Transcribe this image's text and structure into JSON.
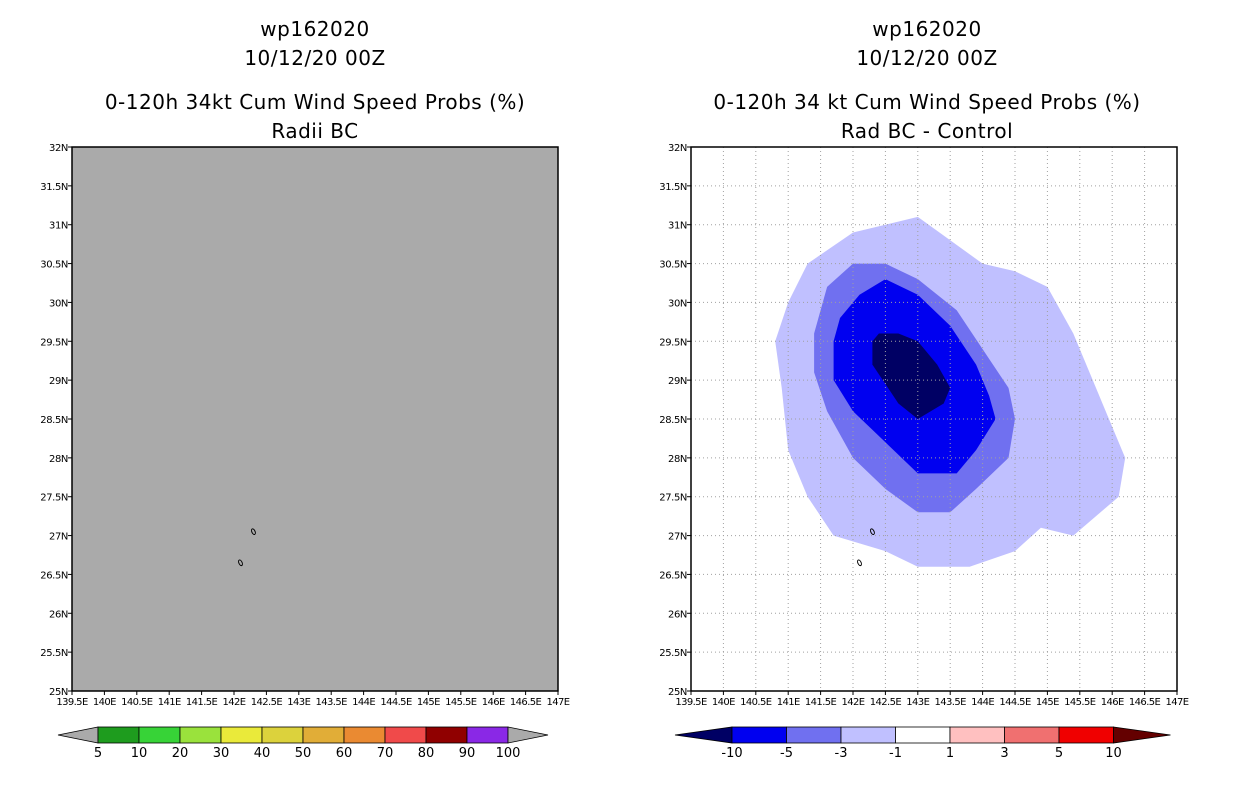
{
  "chart_data": [
    {
      "type": "heatmap",
      "title_line1": "wp162020",
      "title_line2": "10/12/20 00Z",
      "panel_title_line1": "0-120h 34kt Cum Wind Speed Probs (%)",
      "panel_title_line2": "Radii BC",
      "background_color": "#aaaaaa",
      "xlim": [
        139.5,
        147.0
      ],
      "ylim": [
        25.0,
        32.0
      ],
      "x_ticks": [
        "139.5E",
        "140E",
        "140.5E",
        "141E",
        "141.5E",
        "142E",
        "142.5E",
        "143E",
        "143.5E",
        "144E",
        "144.5E",
        "145E",
        "145.5E",
        "146E",
        "146.5E",
        "147E"
      ],
      "y_ticks": [
        "25N",
        "25.5N",
        "26N",
        "26.5N",
        "27N",
        "27.5N",
        "28N",
        "28.5N",
        "29N",
        "29.5N",
        "30N",
        "30.5N",
        "31N",
        "31.5N",
        "32N"
      ],
      "grid": false,
      "islands": [
        [
          142.3,
          27.05
        ],
        [
          142.1,
          26.65
        ]
      ],
      "colorbar": {
        "labels": [
          "5",
          "10",
          "20",
          "30",
          "40",
          "50",
          "60",
          "70",
          "80",
          "90",
          "100"
        ],
        "colors": [
          "#aaaaaa",
          "#1e9c1e",
          "#37d337",
          "#9ae23c",
          "#eaea3a",
          "#dcd23c",
          "#e1ad37",
          "#ea8a32",
          "#f04a4a",
          "#900000",
          "#8a28e6",
          "#aaaaaa"
        ]
      }
    },
    {
      "type": "heatmap",
      "title_line1": "wp162020",
      "title_line2": "10/12/20 00Z",
      "panel_title_line1": "0-120h 34 kt Cum Wind Speed Probs (%)",
      "panel_title_line2": "Rad BC - Control",
      "background_color": "#ffffff",
      "xlim": [
        139.5,
        147.0
      ],
      "ylim": [
        25.0,
        32.0
      ],
      "x_ticks": [
        "139.5E",
        "140E",
        "140.5E",
        "141E",
        "141.5E",
        "142E",
        "142.5E",
        "143E",
        "143.5E",
        "144E",
        "144.5E",
        "145E",
        "145.5E",
        "146E",
        "146.5E",
        "147E"
      ],
      "y_ticks": [
        "25N",
        "25.5N",
        "26N",
        "26.5N",
        "27N",
        "27.5N",
        "28N",
        "28.5N",
        "29N",
        "29.5N",
        "30N",
        "30.5N",
        "31N",
        "31.5N",
        "32N"
      ],
      "grid": true,
      "islands": [
        [
          142.3,
          27.05
        ],
        [
          142.1,
          26.65
        ]
      ],
      "contours": [
        {
          "level": "-1 to -3",
          "color": "#c0c0ff",
          "points": [
            [
              141.3,
              30.5
            ],
            [
              142.0,
              30.9
            ],
            [
              143.0,
              31.1
            ],
            [
              143.5,
              30.8
            ],
            [
              144.0,
              30.5
            ],
            [
              144.5,
              30.4
            ],
            [
              145.0,
              30.2
            ],
            [
              145.4,
              29.6
            ],
            [
              145.9,
              28.6
            ],
            [
              146.2,
              28.0
            ],
            [
              146.1,
              27.5
            ],
            [
              145.4,
              27.0
            ],
            [
              144.9,
              27.1
            ],
            [
              144.5,
              26.8
            ],
            [
              143.8,
              26.6
            ],
            [
              143.0,
              26.6
            ],
            [
              142.5,
              26.8
            ],
            [
              141.7,
              27.0
            ],
            [
              141.3,
              27.5
            ],
            [
              141.0,
              28.1
            ],
            [
              140.9,
              28.9
            ],
            [
              140.8,
              29.5
            ],
            [
              141.0,
              30.0
            ]
          ]
        },
        {
          "level": "-3 to -5",
          "color": "#7070f0",
          "points": [
            [
              141.6,
              30.2
            ],
            [
              142.0,
              30.5
            ],
            [
              142.5,
              30.5
            ],
            [
              143.0,
              30.3
            ],
            [
              143.6,
              29.9
            ],
            [
              144.0,
              29.4
            ],
            [
              144.4,
              28.9
            ],
            [
              144.5,
              28.5
            ],
            [
              144.4,
              28.0
            ],
            [
              143.9,
              27.6
            ],
            [
              143.5,
              27.3
            ],
            [
              143.0,
              27.3
            ],
            [
              142.5,
              27.6
            ],
            [
              142.0,
              28.0
            ],
            [
              141.6,
              28.6
            ],
            [
              141.4,
              29.1
            ],
            [
              141.4,
              29.6
            ]
          ]
        },
        {
          "level": "-5 to -10",
          "color": "#0000f0",
          "points": [
            [
              142.1,
              30.1
            ],
            [
              142.5,
              30.3
            ],
            [
              143.0,
              30.1
            ],
            [
              143.5,
              29.7
            ],
            [
              143.9,
              29.2
            ],
            [
              144.1,
              28.8
            ],
            [
              144.2,
              28.5
            ],
            [
              143.9,
              28.1
            ],
            [
              143.6,
              27.8
            ],
            [
              143.0,
              27.8
            ],
            [
              142.5,
              28.2
            ],
            [
              142.0,
              28.6
            ],
            [
              141.7,
              29.0
            ],
            [
              141.7,
              29.5
            ],
            [
              141.8,
              29.8
            ]
          ]
        },
        {
          "level": "< -10",
          "color": "#000064",
          "points": [
            [
              142.4,
              29.6
            ],
            [
              142.7,
              29.6
            ],
            [
              143.0,
              29.5
            ],
            [
              143.3,
              29.2
            ],
            [
              143.5,
              28.9
            ],
            [
              143.4,
              28.7
            ],
            [
              143.0,
              28.5
            ],
            [
              142.7,
              28.7
            ],
            [
              142.3,
              29.2
            ],
            [
              142.3,
              29.5
            ]
          ]
        }
      ],
      "colorbar": {
        "labels": [
          "-10",
          "-5",
          "-3",
          "-1",
          "1",
          "3",
          "5",
          "10"
        ],
        "colors": [
          "#000064",
          "#0000f0",
          "#7070f0",
          "#c0c0ff",
          "#ffffff",
          "#ffc0c0",
          "#f07070",
          "#f00000",
          "#640000"
        ]
      }
    }
  ]
}
